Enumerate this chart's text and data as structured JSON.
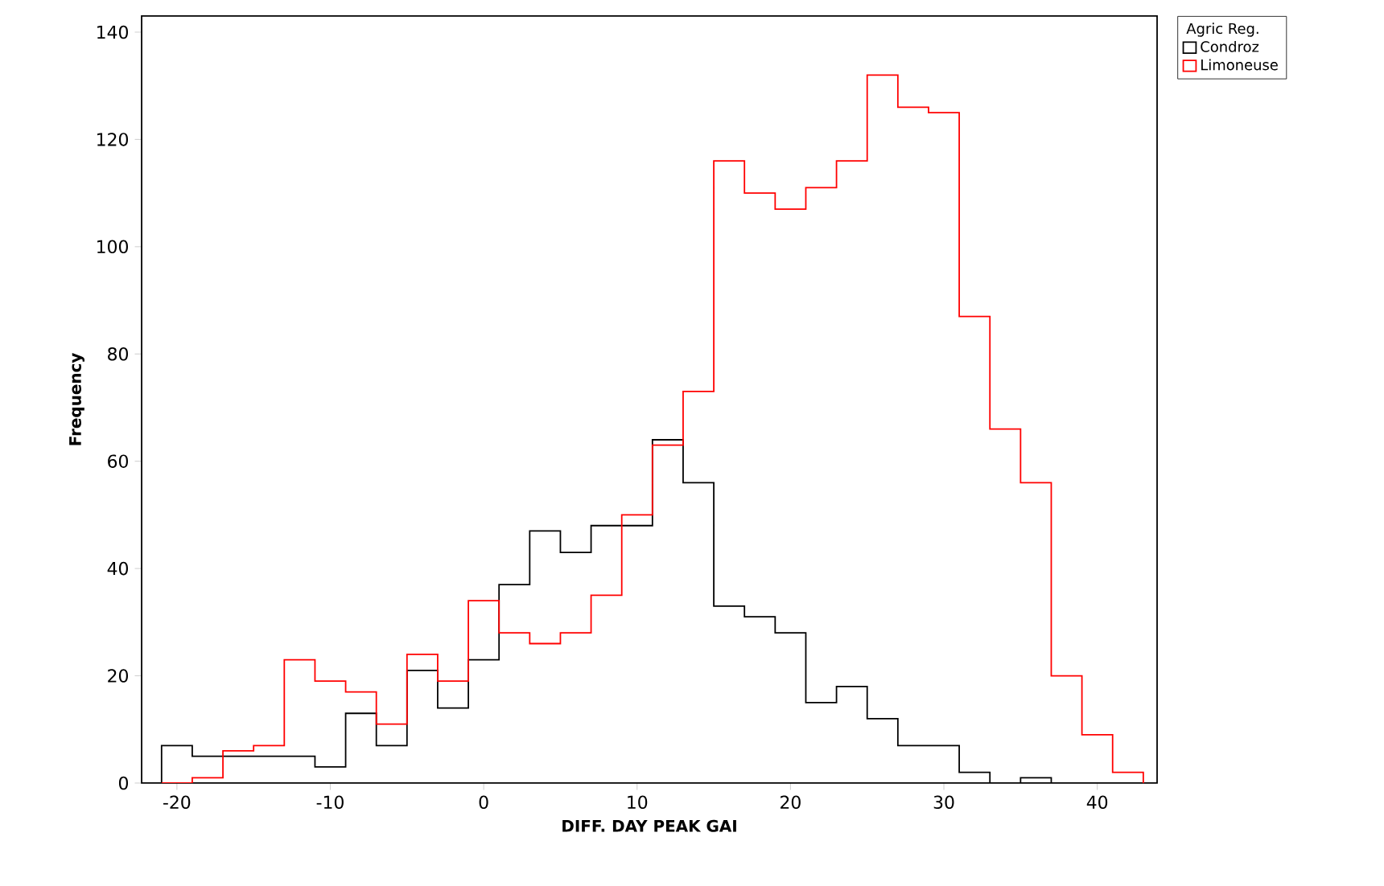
{
  "chart_data": {
    "type": "histogram",
    "xlabel": "DIFF. DAY PEAK GAI",
    "ylabel": "Frequency",
    "legend_title": "Agric Reg.",
    "bins": [
      -21,
      -19,
      -17,
      -15,
      -13,
      -11,
      -9,
      -7,
      -5,
      -3,
      -1,
      1,
      3,
      5,
      7,
      9,
      11,
      13,
      15,
      17,
      19,
      21,
      23,
      25,
      27,
      29,
      31,
      33,
      35,
      37,
      39,
      41,
      43
    ],
    "series": [
      {
        "name": "Condroz",
        "color": "#000000",
        "values": [
          7,
          5,
          5,
          5,
          5,
          3,
          13,
          7,
          21,
          14,
          23,
          37,
          47,
          43,
          48,
          48,
          64,
          56,
          33,
          31,
          28,
          15,
          18,
          12,
          7,
          7,
          2,
          0,
          1,
          0,
          0,
          0
        ]
      },
      {
        "name": "Limoneuse",
        "color": "#ff0000",
        "values": [
          0,
          1,
          6,
          7,
          23,
          19,
          17,
          11,
          24,
          19,
          34,
          28,
          26,
          28,
          35,
          50,
          63,
          73,
          116,
          110,
          107,
          111,
          116,
          132,
          126,
          125,
          87,
          66,
          56,
          20,
          9,
          2
        ]
      }
    ],
    "xlim": [
      -22.3,
      43.9
    ],
    "ylim": [
      0,
      143
    ],
    "xticks": [
      -20,
      -10,
      0,
      10,
      20,
      30,
      40
    ],
    "yticks": [
      0,
      20,
      40,
      60,
      80,
      100,
      120,
      140
    ],
    "grid": false,
    "legend": "top right"
  }
}
